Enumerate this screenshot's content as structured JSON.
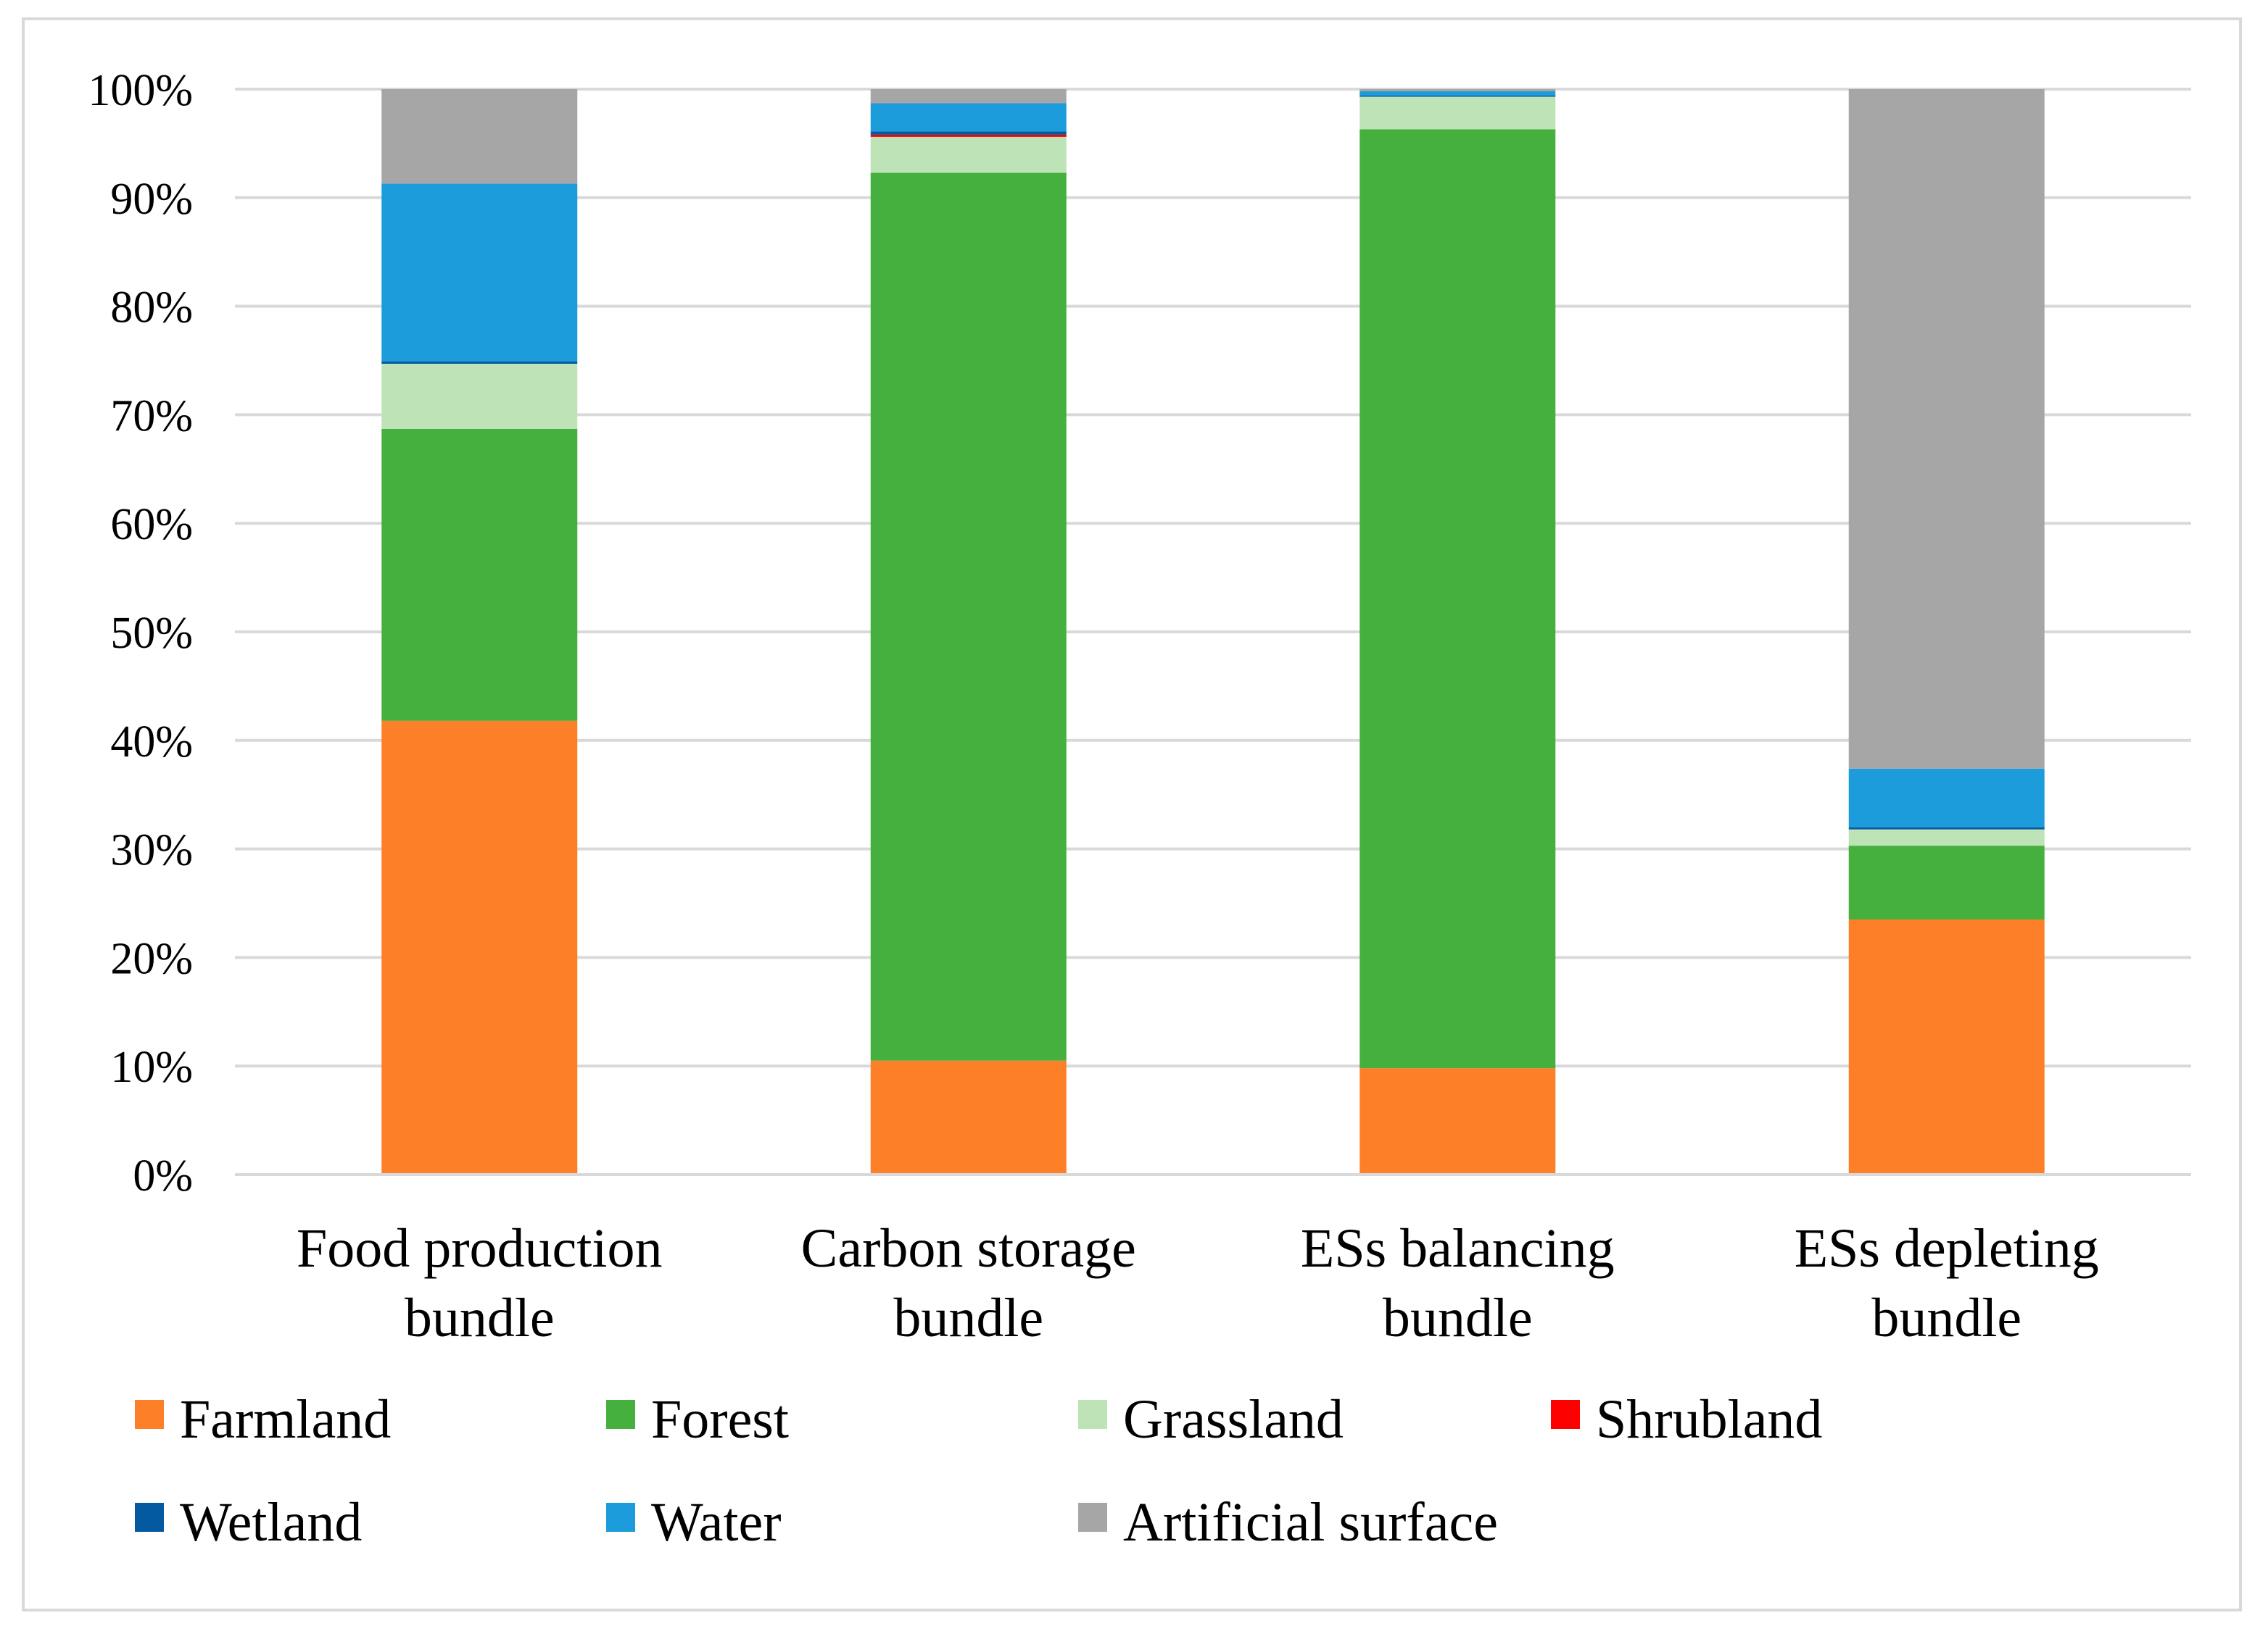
{
  "chart_data": {
    "type": "bar",
    "stacked": "percent",
    "title": "",
    "xlabel": "",
    "ylabel": "",
    "ylim": [
      0,
      100
    ],
    "y_ticks": [
      "0%",
      "10%",
      "20%",
      "30%",
      "40%",
      "50%",
      "60%",
      "70%",
      "80%",
      "90%",
      "100%"
    ],
    "grid": true,
    "legend_position": "bottom",
    "categories": [
      [
        "Food production",
        "bundle"
      ],
      [
        "Carbon storage",
        "bundle"
      ],
      [
        "ESs balancing",
        "bundle"
      ],
      [
        "ESs depleting",
        "bundle"
      ]
    ],
    "series": [
      {
        "name": "Farmland",
        "color": "#fd7f27",
        "values": [
          41.8,
          10.5,
          9.8,
          23.5
        ]
      },
      {
        "name": "Forest",
        "color": "#45b03d",
        "values": [
          26.9,
          81.8,
          86.5,
          6.8
        ]
      },
      {
        "name": "Grassland",
        "color": "#bde3b6",
        "values": [
          6.0,
          3.3,
          3.0,
          1.5
        ]
      },
      {
        "name": "Shrubland",
        "color": "#fd0000",
        "values": [
          0.0,
          0.2,
          0.0,
          0.0
        ]
      },
      {
        "name": "Wetland",
        "color": "#045aa0",
        "values": [
          0.2,
          0.3,
          0.1,
          0.2
        ]
      },
      {
        "name": "Water",
        "color": "#1c9cdb",
        "values": [
          16.4,
          2.6,
          0.4,
          5.4
        ]
      },
      {
        "name": "Artificial surface",
        "color": "#a6a6a6",
        "values": [
          8.7,
          1.3,
          0.2,
          62.6
        ]
      }
    ]
  }
}
